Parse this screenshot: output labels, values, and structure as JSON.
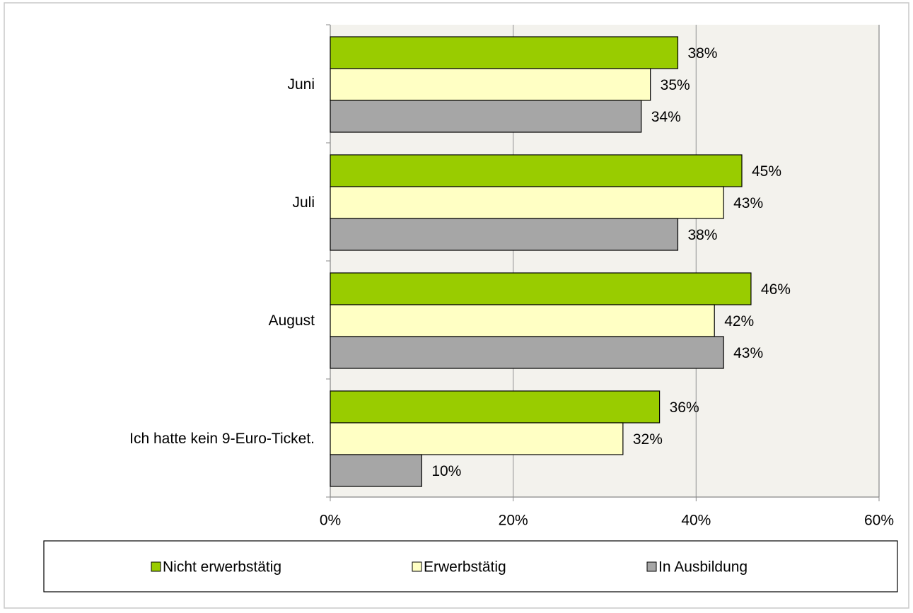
{
  "chart_data": {
    "type": "bar",
    "orientation": "horizontal",
    "categories": [
      "Juni",
      "Juli",
      "August",
      "Ich hatte kein 9-Euro-Ticket."
    ],
    "series": [
      {
        "name": "Nicht erwerbstätig",
        "color": "#99cc00",
        "values": [
          38,
          45,
          46,
          36
        ],
        "value_labels": [
          "38%",
          "45%",
          "46%",
          "36%"
        ]
      },
      {
        "name": "Erwerbstätig",
        "color": "#ffffc4",
        "values": [
          35,
          43,
          42,
          32
        ],
        "value_labels": [
          "35%",
          "43%",
          "42%",
          "32%"
        ]
      },
      {
        "name": "In Ausbildung",
        "color": "#a6a6a6",
        "values": [
          34,
          38,
          43,
          10
        ],
        "value_labels": [
          "34%",
          "38%",
          "43%",
          "10%"
        ]
      }
    ],
    "xlim": [
      0,
      60
    ],
    "xticks": [
      {
        "value": 0,
        "label": "0%"
      },
      {
        "value": 20,
        "label": "20%"
      },
      {
        "value": 40,
        "label": "40%"
      },
      {
        "value": 60,
        "label": "60%"
      }
    ],
    "grid": true,
    "legend": "bottom"
  }
}
